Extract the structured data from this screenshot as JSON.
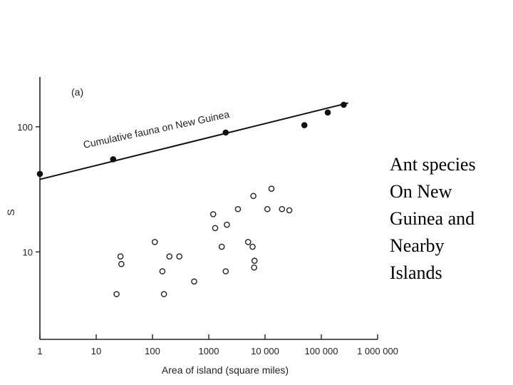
{
  "chart_data": {
    "type": "scatter",
    "panel_label": "(a)",
    "xlabel": "Area of island (square miles)",
    "ylabel": "S",
    "x_scale": "log",
    "y_scale": "log",
    "xlim": [
      1,
      1000000
    ],
    "ylim": [
      2,
      250
    ],
    "x_ticks": [
      1,
      10,
      100,
      1000,
      10000,
      100000,
      1000000
    ],
    "x_tick_labels": [
      "1",
      "10",
      "100",
      "1000",
      "10 000",
      "100 000",
      "1 000 000"
    ],
    "y_ticks": [
      10,
      100
    ],
    "y_tick_labels": [
      "10",
      "100"
    ],
    "grid": false,
    "line_label": "Cumulative fauna on New Guinea",
    "fit_line": {
      "x": [
        1,
        300000
      ],
      "y": [
        38,
        155
      ]
    },
    "series": [
      {
        "marker": "filled",
        "x": [
          1,
          20,
          2000,
          50000,
          130000,
          250000
        ],
        "y": [
          42,
          55,
          90,
          103,
          130,
          150
        ]
      },
      {
        "marker": "open",
        "x": [
          23,
          27,
          28,
          110,
          150,
          160,
          200,
          300,
          550,
          1200,
          1300,
          1700,
          2000,
          2100,
          3300,
          5000,
          6000,
          6200,
          6400,
          6500,
          11000,
          13000,
          20000,
          27000
        ],
        "y": [
          4.6,
          9.2,
          8.0,
          12.0,
          7.0,
          4.6,
          9.2,
          9.2,
          5.8,
          20.0,
          15.5,
          11.0,
          7.0,
          16.5,
          22.0,
          12.0,
          11.0,
          28.0,
          7.5,
          8.5,
          22.0,
          32.0,
          22.0,
          21.5
        ]
      }
    ]
  },
  "side_note": {
    "lines": [
      "Ant species",
      "On New",
      "Guinea and",
      "Nearby",
      "Islands"
    ]
  }
}
